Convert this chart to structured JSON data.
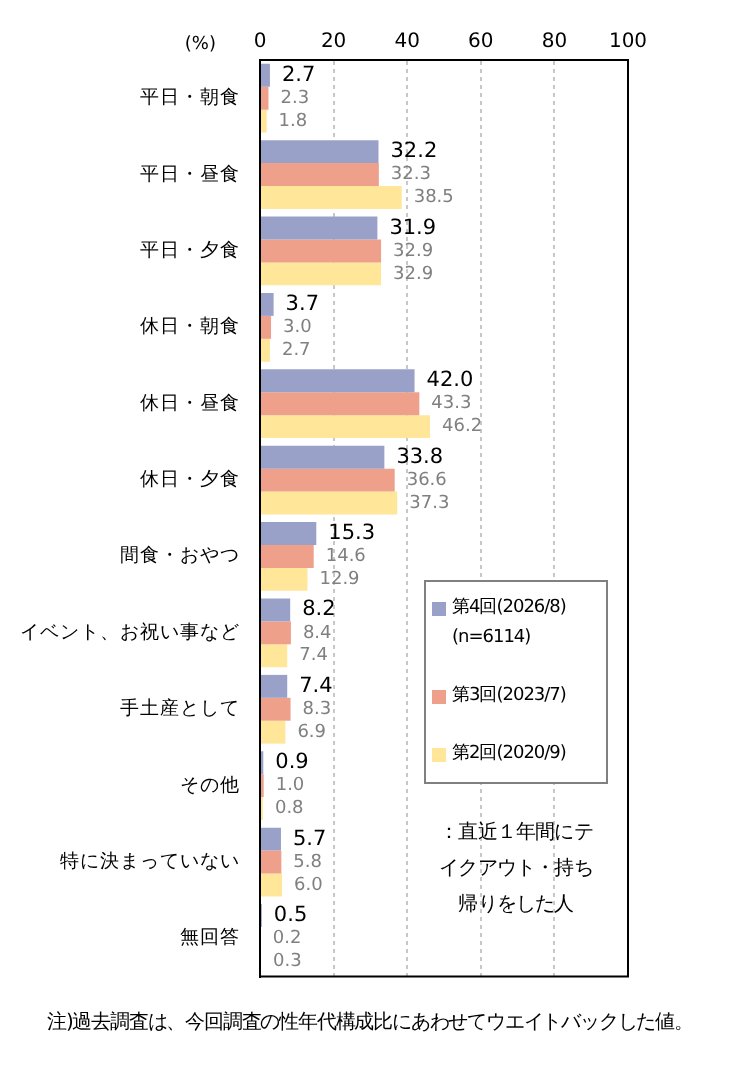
{
  "chart_data": {
    "type": "bar",
    "orientation": "horizontal",
    "xlabel": "(%)",
    "categories": [
      "平日・朝食",
      "平日・昼食",
      "平日・夕食",
      "休日・朝食",
      "休日・昼食",
      "休日・夕食",
      "間食・おやつ",
      "イベント、お祝い事など",
      "手土産として",
      "その他",
      "特に決まっていない",
      "無回答"
    ],
    "series": [
      {
        "name": "第4回(2026/8) (n=6114)",
        "color": "#9aa1c9",
        "values": [
          2.7,
          32.2,
          31.9,
          3.7,
          42.0,
          33.8,
          15.3,
          8.2,
          7.4,
          0.9,
          5.7,
          0.5
        ],
        "value_labels": [
          "2.7",
          "32.2",
          "31.9",
          "3.7",
          "42.0",
          "33.8",
          "15.3",
          "8.2",
          "7.4",
          "0.9",
          "5.7",
          "0.5"
        ]
      },
      {
        "name": "第3回(2023/7)",
        "color": "#efa08a",
        "values": [
          2.3,
          32.3,
          32.9,
          3.0,
          43.3,
          36.6,
          14.6,
          8.4,
          8.3,
          1.0,
          5.8,
          0.2
        ],
        "value_labels": [
          "2.3",
          "32.3",
          "32.9",
          "3.0",
          "43.3",
          "36.6",
          "14.6",
          "8.4",
          "8.3",
          "1.0",
          "5.8",
          "0.2"
        ]
      },
      {
        "name": "第2回(2020/9)",
        "color": "#ffe699",
        "values": [
          1.8,
          38.5,
          32.9,
          2.7,
          46.2,
          37.3,
          12.9,
          7.4,
          6.9,
          0.8,
          6.0,
          0.3
        ],
        "value_labels": [
          "1.8",
          "38.5",
          "32.9",
          "2.7",
          "46.2",
          "37.3",
          "12.9",
          "7.4",
          "6.9",
          "0.8",
          "6.0",
          "0.3"
        ]
      }
    ],
    "xlim": [
      0,
      100
    ],
    "xticks": [
      0,
      20,
      40,
      60,
      80,
      100
    ],
    "grid": "x",
    "legend": "right",
    "annotations": [
      "：直近１年間にテイクアウト・持ち帰りをした人",
      "注)過去調査は、今回調査の性年代構成比にあわせてウエイトバックした値。"
    ]
  }
}
